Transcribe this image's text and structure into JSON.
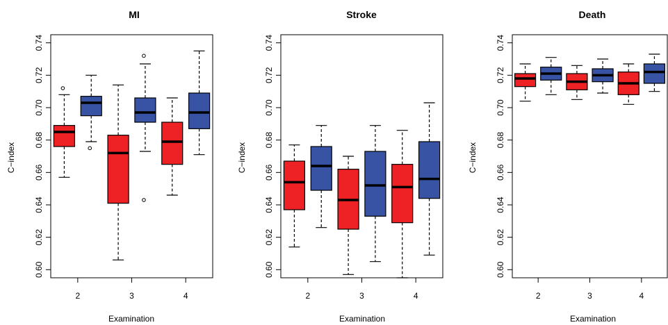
{
  "colors": {
    "first": "#EE2124",
    "second": "#3953A4"
  },
  "chart_data": [
    {
      "type": "box",
      "title": "MI",
      "xlabel": "Examination",
      "ylabel": "C−index",
      "ylim": [
        0.595,
        0.745
      ],
      "yticks": [
        "0.60",
        "0.62",
        "0.64",
        "0.66",
        "0.68",
        "0.70",
        "0.72",
        "0.74"
      ],
      "categories": [
        "2",
        "3",
        "4"
      ],
      "boxes": [
        {
          "category": "2",
          "color": "first",
          "whisker_low": 0.657,
          "q1": 0.676,
          "median": 0.685,
          "q3": 0.689,
          "whisker_high": 0.708,
          "outliers": [
            0.712
          ]
        },
        {
          "category": "2",
          "color": "second",
          "whisker_low": 0.679,
          "q1": 0.695,
          "median": 0.703,
          "q3": 0.707,
          "whisker_high": 0.72,
          "outliers": [
            0.675
          ]
        },
        {
          "category": "3",
          "color": "first",
          "whisker_low": 0.606,
          "q1": 0.641,
          "median": 0.672,
          "q3": 0.683,
          "whisker_high": 0.714,
          "outliers": []
        },
        {
          "category": "3",
          "color": "second",
          "whisker_low": 0.673,
          "q1": 0.691,
          "median": 0.697,
          "q3": 0.706,
          "whisker_high": 0.727,
          "outliers": [
            0.732,
            0.643
          ]
        },
        {
          "category": "4",
          "color": "first",
          "whisker_low": 0.646,
          "q1": 0.665,
          "median": 0.679,
          "q3": 0.691,
          "whisker_high": 0.706,
          "outliers": []
        },
        {
          "category": "4",
          "color": "second",
          "whisker_low": 0.671,
          "q1": 0.687,
          "median": 0.697,
          "q3": 0.709,
          "whisker_high": 0.735,
          "outliers": []
        }
      ]
    },
    {
      "type": "box",
      "title": "Stroke",
      "xlabel": "Examination",
      "ylabel": "C−index",
      "ylim": [
        0.595,
        0.745
      ],
      "yticks": [
        "0.60",
        "0.62",
        "0.64",
        "0.66",
        "0.68",
        "0.70",
        "0.72",
        "0.74"
      ],
      "categories": [
        "2",
        "3",
        "4"
      ],
      "boxes": [
        {
          "category": "2",
          "color": "first",
          "whisker_low": 0.614,
          "q1": 0.637,
          "median": 0.654,
          "q3": 0.667,
          "whisker_high": 0.677,
          "outliers": []
        },
        {
          "category": "2",
          "color": "second",
          "whisker_low": 0.626,
          "q1": 0.649,
          "median": 0.664,
          "q3": 0.676,
          "whisker_high": 0.689,
          "outliers": []
        },
        {
          "category": "3",
          "color": "first",
          "whisker_low": 0.597,
          "q1": 0.625,
          "median": 0.643,
          "q3": 0.662,
          "whisker_high": 0.67,
          "outliers": []
        },
        {
          "category": "3",
          "color": "second",
          "whisker_low": 0.605,
          "q1": 0.633,
          "median": 0.652,
          "q3": 0.673,
          "whisker_high": 0.689,
          "outliers": []
        },
        {
          "category": "4",
          "color": "first",
          "whisker_low": 0.595,
          "q1": 0.629,
          "median": 0.651,
          "q3": 0.665,
          "whisker_high": 0.686,
          "outliers": []
        },
        {
          "category": "4",
          "color": "second",
          "whisker_low": 0.609,
          "q1": 0.644,
          "median": 0.656,
          "q3": 0.679,
          "whisker_high": 0.703,
          "outliers": []
        }
      ]
    },
    {
      "type": "box",
      "title": "Death",
      "xlabel": "Examination",
      "ylabel": "C−index",
      "ylim": [
        0.595,
        0.745
      ],
      "yticks": [
        "0.60",
        "0.62",
        "0.64",
        "0.66",
        "0.68",
        "0.70",
        "0.72",
        "0.74"
      ],
      "categories": [
        "2",
        "3",
        "4"
      ],
      "boxes": [
        {
          "category": "2",
          "color": "first",
          "whisker_low": 0.704,
          "q1": 0.713,
          "median": 0.718,
          "q3": 0.721,
          "whisker_high": 0.727,
          "outliers": []
        },
        {
          "category": "2",
          "color": "second",
          "whisker_low": 0.708,
          "q1": 0.717,
          "median": 0.721,
          "q3": 0.725,
          "whisker_high": 0.731,
          "outliers": []
        },
        {
          "category": "3",
          "color": "first",
          "whisker_low": 0.705,
          "q1": 0.711,
          "median": 0.716,
          "q3": 0.721,
          "whisker_high": 0.726,
          "outliers": []
        },
        {
          "category": "3",
          "color": "second",
          "whisker_low": 0.709,
          "q1": 0.716,
          "median": 0.72,
          "q3": 0.724,
          "whisker_high": 0.73,
          "outliers": []
        },
        {
          "category": "4",
          "color": "first",
          "whisker_low": 0.702,
          "q1": 0.708,
          "median": 0.715,
          "q3": 0.722,
          "whisker_high": 0.727,
          "outliers": []
        },
        {
          "category": "4",
          "color": "second",
          "whisker_low": 0.71,
          "q1": 0.715,
          "median": 0.722,
          "q3": 0.727,
          "whisker_high": 0.733,
          "outliers": []
        }
      ]
    }
  ]
}
